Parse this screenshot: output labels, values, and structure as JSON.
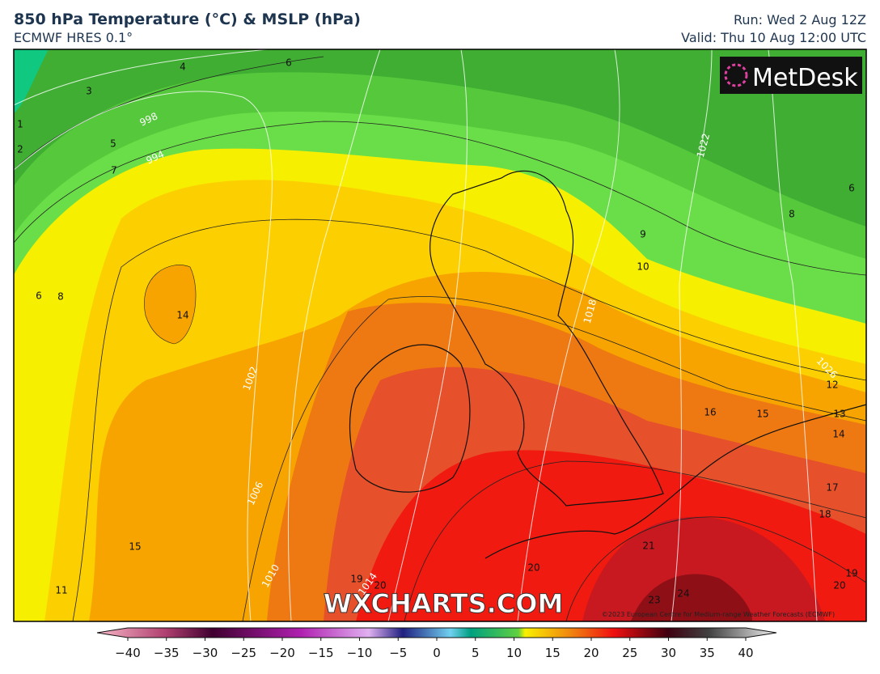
{
  "header": {
    "title": "850 hPa Temperature (°C) & MSLP (hPa)",
    "subtitle": "ECMWF HRES 0.1°",
    "run": "Run: Wed 2 Aug 12Z",
    "valid": "Valid: Thu 10 Aug 12:00 UTC"
  },
  "map": {
    "logo": "MetDesk",
    "watermark": "WXCHARTS.COM",
    "copyright": "©2023 European Centre for Medium-range Weather Forecasts (ECMWF)",
    "contour_labels": [
      "4",
      "6",
      "3",
      "1",
      "2",
      "5",
      "7",
      "998",
      "994",
      "6",
      "8",
      "14",
      "15",
      "11",
      "19",
      "1014",
      "20",
      "1010",
      "1006",
      "1002",
      "1018",
      "1022",
      "1026",
      "9",
      "10",
      "12",
      "13",
      "14",
      "16",
      "15",
      "17",
      "18",
      "21",
      "20",
      "23",
      "24",
      "19",
      "20",
      "8",
      "6"
    ]
  },
  "colorbar": {
    "ticks": [
      "−40",
      "−35",
      "−30",
      "−25",
      "−20",
      "−15",
      "−10",
      "−5",
      "0",
      "5",
      "10",
      "15",
      "20",
      "25",
      "30",
      "35",
      "40"
    ]
  }
}
